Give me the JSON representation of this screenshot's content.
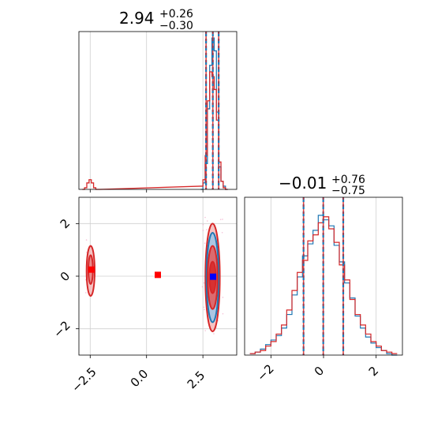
{
  "chart_data": {
    "type": "corner",
    "colors": {
      "blue": "#1f77b4",
      "red": "#d62728",
      "marker_red": "#ff0000",
      "marker_blue": "#0000ff"
    },
    "panels": [
      {
        "id": "p1_hist",
        "type": "histogram",
        "title": {
          "main": "2.94",
          "sup": "+0.26",
          "sub": "−0.30"
        },
        "xlim": [
          -3.0,
          4.0
        ],
        "quantiles_x": [
          2.64,
          2.94,
          3.2
        ],
        "series": [
          {
            "name": "",
            "color_key": "blue",
            "bins": [
              2.45,
              2.55,
              2.65,
              2.75,
              2.85,
              2.95,
              3.05,
              3.15,
              3.25,
              3.35,
              3.45,
              3.55
            ],
            "heights": [
              0.0,
              0.04,
              0.16,
              0.5,
              0.77,
              0.94,
              0.86,
              0.48,
              0.14,
              0.05,
              0.02,
              0.0
            ]
          },
          {
            "name": "",
            "color_key": "red",
            "bins": [
              -2.8,
              -2.7,
              -2.6,
              -2.5,
              -2.4,
              -2.3,
              -2.2,
              -2.1,
              2.45,
              2.55,
              2.65,
              2.75,
              2.85,
              2.95,
              3.05,
              3.15,
              3.25,
              3.35,
              3.45,
              3.55
            ],
            "heights": [
              0.0,
              0.01,
              0.04,
              0.06,
              0.04,
              0.01,
              0.0,
              0.0,
              0.02,
              0.06,
              0.21,
              0.55,
              0.73,
              0.7,
              0.62,
              0.43,
              0.17,
              0.05,
              0.01,
              0.0
            ]
          }
        ]
      },
      {
        "id": "p2_scatter",
        "type": "contour",
        "xlim": [
          -3.0,
          4.0
        ],
        "ylim": [
          -3.0,
          3.0
        ],
        "xticks": [
          -2.5,
          0.0,
          2.5
        ],
        "xtick_labels": [
          "−2.5",
          "0.0",
          "2.5"
        ],
        "yticks": [
          -2,
          0,
          2
        ],
        "ytick_labels": [
          "−2",
          "0",
          "2"
        ],
        "markers": [
          {
            "x": -2.45,
            "y": 0.25,
            "color_key": "marker_red"
          },
          {
            "x": 0.5,
            "y": 0.05,
            "color_key": "marker_red"
          },
          {
            "x": 2.95,
            "y": -0.02,
            "color_key": "marker_blue"
          }
        ],
        "contours": [
          {
            "cx": 2.93,
            "cy": -0.05,
            "rx": 0.32,
            "ry": 2.05,
            "color_key": "red",
            "fill": "#f3b8b8"
          },
          {
            "cx": 2.93,
            "cy": -0.05,
            "rx": 0.27,
            "ry": 1.7,
            "color_key": "blue",
            "fill": "#9ec5e8"
          },
          {
            "cx": 2.93,
            "cy": -0.05,
            "rx": 0.22,
            "ry": 1.2,
            "color_key": "red",
            "fill": "#e35a5a"
          },
          {
            "cx": 2.93,
            "cy": -0.05,
            "rx": 0.14,
            "ry": 0.6,
            "color_key": "red",
            "fill": "#d62728"
          },
          {
            "cx": -2.48,
            "cy": 0.2,
            "rx": 0.18,
            "ry": 0.95,
            "color_key": "red",
            "fill": "#f3b8b8"
          },
          {
            "cx": -2.48,
            "cy": 0.25,
            "rx": 0.1,
            "ry": 0.55,
            "color_key": "red",
            "fill": "#e88080"
          }
        ]
      },
      {
        "id": "p3_hist",
        "type": "histogram",
        "title": {
          "main": "−0.01",
          "sup": "+0.76",
          "sub": "−0.75"
        },
        "xlim": [
          -3.0,
          3.0
        ],
        "xticks": [
          -2,
          0,
          2
        ],
        "xtick_labels": [
          "−2",
          "0",
          "2"
        ],
        "quantiles_x": [
          -0.76,
          -0.01,
          0.75
        ],
        "series": [
          {
            "name": "",
            "color_key": "blue",
            "bins": [
              -2.7,
              -2.5,
              -2.3,
              -2.1,
              -1.9,
              -1.7,
              -1.5,
              -1.3,
              -1.1,
              -0.9,
              -0.7,
              -0.5,
              -0.3,
              -0.1,
              0.1,
              0.3,
              0.5,
              0.7,
              0.9,
              1.1,
              1.3,
              1.5,
              1.7,
              1.9,
              2.1,
              2.3,
              2.5,
              2.7
            ],
            "heights": [
              0.01,
              0.02,
              0.04,
              0.07,
              0.1,
              0.13,
              0.18,
              0.27,
              0.4,
              0.52,
              0.66,
              0.74,
              0.83,
              0.93,
              0.9,
              0.86,
              0.73,
              0.62,
              0.48,
              0.38,
              0.26,
              0.18,
              0.12,
              0.08,
              0.05,
              0.03,
              0.01,
              0.0
            ]
          },
          {
            "name": "",
            "color_key": "red",
            "bins": [
              -2.7,
              -2.5,
              -2.3,
              -2.1,
              -1.9,
              -1.7,
              -1.5,
              -1.3,
              -1.1,
              -0.9,
              -0.7,
              -0.5,
              -0.3,
              -0.1,
              0.1,
              0.3,
              0.5,
              0.7,
              0.9,
              1.1,
              1.3,
              1.5,
              1.7,
              1.9,
              2.1,
              2.3,
              2.5,
              2.7
            ],
            "heights": [
              0.01,
              0.02,
              0.03,
              0.06,
              0.09,
              0.14,
              0.2,
              0.3,
              0.43,
              0.55,
              0.63,
              0.76,
              0.8,
              0.88,
              0.92,
              0.84,
              0.75,
              0.6,
              0.5,
              0.37,
              0.27,
              0.2,
              0.14,
              0.09,
              0.06,
              0.03,
              0.02,
              0.01
            ]
          }
        ]
      }
    ]
  }
}
